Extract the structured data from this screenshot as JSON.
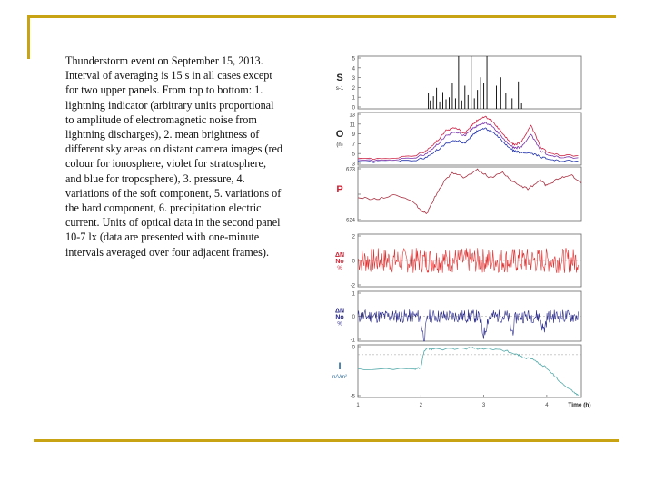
{
  "slide": {
    "caption": "Thunderstorm event on September 15, 2013. Interval of averaging is 15 s in all cases except for two upper panels. From top to bottom: 1. lightning indicator (arbitrary units proportional to amplitude of electromagnetic noise from lightning discharges), 2. mean brightness of different sky areas on distant camera images (red colour for ionosphere, violet for stratosphere, and blue for troposphere), 3. pressure, 4.  variations of the soft component, 5. variations of the hard component, 6.  precipitation electric current. Units of optical data in the second panel 10-7 lx (data are presented with one-minute intervals averaged over four adjacent frames).",
    "accent_color": "#c8a415"
  },
  "chart_data": {
    "type": "line",
    "x_label": "Time (h)",
    "x_ticks": [
      "1",
      "2",
      "3",
      "4"
    ],
    "xlim": [
      1,
      4.55
    ],
    "panels": [
      {
        "label": "S",
        "unit": "s-1",
        "y_ticks": [
          "5",
          "4",
          "3",
          "2",
          "1",
          "0"
        ],
        "ylim": [
          0,
          5
        ],
        "series": [
          {
            "color": "#000000",
            "style": "impulses",
            "x": [
              2.12,
              2.15,
              2.2,
              2.25,
              2.3,
              2.35,
              2.4,
              2.45,
              2.5,
              2.55,
              2.6,
              2.65,
              2.7,
              2.75,
              2.8,
              2.85,
              2.9,
              2.95,
              3.0,
              3.05,
              3.1,
              3.2,
              3.27,
              3.35,
              3.45,
              3.55,
              3.6
            ],
            "y": [
              1.5,
              0.8,
              1.2,
              2.0,
              0.7,
              1.6,
              0.9,
              1.1,
              2.5,
              1.0,
              5.0,
              0.8,
              2.2,
              1.3,
              5.0,
              1.0,
              1.8,
              3.0,
              2.5,
              5.0,
              1.2,
              2.2,
              3.0,
              1.5,
              1.0,
              2.6,
              0.6
            ]
          }
        ]
      },
      {
        "label": "O",
        "unit": "(n)",
        "y_ticks": [
          "13",
          "11",
          "9",
          "7",
          "5",
          "3"
        ],
        "ylim": [
          3,
          13
        ],
        "series": [
          {
            "color": "#cc2244",
            "x": [
              1,
              1.5,
              1.9,
              2.1,
              2.25,
              2.4,
              2.55,
              2.7,
              2.8,
              2.9,
              3.0,
              3.1,
              3.2,
              3.3,
              3.4,
              3.5,
              3.6,
              3.75,
              3.9,
              4.0,
              4.2,
              4.5
            ],
            "y": [
              4.2,
              4.3,
              4.8,
              5.8,
              7.5,
              9.5,
              10.2,
              9.0,
              10.5,
              11.5,
              12.2,
              11.8,
              10.5,
              9.0,
              7.5,
              6.8,
              7.5,
              10.5,
              6.5,
              5.5,
              5.0,
              4.8
            ]
          },
          {
            "color": "#7733aa",
            "x": [
              1,
              1.5,
              1.9,
              2.1,
              2.25,
              2.4,
              2.55,
              2.7,
              2.8,
              2.9,
              3.0,
              3.1,
              3.2,
              3.3,
              3.4,
              3.5,
              3.6,
              3.75,
              3.9,
              4.0,
              4.2,
              4.5
            ],
            "y": [
              3.9,
              4.0,
              4.4,
              5.2,
              6.8,
              8.5,
              9.4,
              8.6,
              9.8,
              10.5,
              11.0,
              10.8,
              9.6,
              8.2,
              6.8,
              6.2,
              6.5,
              8.8,
              5.8,
              5.0,
              4.6,
              4.4
            ]
          },
          {
            "color": "#2233aa",
            "x": [
              1,
              1.5,
              1.9,
              2.1,
              2.25,
              2.4,
              2.55,
              2.7,
              2.8,
              2.9,
              3.0,
              3.1,
              3.2,
              3.3,
              3.4,
              3.5,
              3.6,
              3.75,
              3.9,
              4.0,
              4.2,
              4.5
            ],
            "y": [
              3.6,
              3.7,
              3.9,
              4.5,
              5.8,
              7.0,
              7.8,
              7.2,
              8.5,
              9.5,
              10.0,
              9.6,
              8.8,
              7.5,
              6.2,
              5.6,
              5.4,
              5.2,
              4.6,
              4.2,
              3.9,
              3.8
            ]
          }
        ]
      },
      {
        "label": "P",
        "unit": "",
        "y_ticks": [
          "623",
          "",
          "624"
        ],
        "ylim": [
          624,
          623
        ],
        "series": [
          {
            "color": "#aa3344",
            "x": [
              1,
              1.3,
              1.6,
              1.9,
              2.0,
              2.1,
              2.2,
              2.35,
              2.5,
              2.7,
              2.9,
              3.1,
              3.3,
              3.5,
              3.7,
              3.9,
              4.0,
              4.2,
              4.4,
              4.55
            ],
            "y": [
              623.55,
              623.6,
              623.5,
              623.65,
              623.8,
              623.85,
              623.6,
              623.3,
              623.1,
              623.2,
              623.05,
              623.2,
              623.1,
              623.3,
              623.4,
              623.25,
              623.35,
              623.2,
              623.15,
              623.3
            ]
          }
        ]
      },
      {
        "label": "ΔN/No",
        "unit": "%",
        "y_ticks": [
          "2",
          "0",
          "-2"
        ],
        "ylim": [
          -2.5,
          2.5
        ],
        "series": [
          {
            "color": "#e03030",
            "style": "noise",
            "baseline": 0,
            "amplitude": 1.2,
            "count": 360,
            "seed": 7
          }
        ]
      },
      {
        "label": "ΔN/No",
        "unit": "%",
        "y_ticks": [
          "1",
          "0",
          "-1"
        ],
        "ylim": [
          -1.3,
          1.3
        ],
        "series": [
          {
            "color": "#2a2a8a",
            "style": "noise",
            "baseline": 0,
            "amplitude": 0.35,
            "count": 360,
            "seed": 11,
            "dips": [
              {
                "x": 2.05,
                "depth": -1.1,
                "width": 0.04
              },
              {
                "x": 3.0,
                "depth": -0.9,
                "width": 0.05
              },
              {
                "x": 3.45,
                "depth": -0.8,
                "width": 0.04
              },
              {
                "x": 3.95,
                "depth": -0.7,
                "width": 0.04
              }
            ]
          }
        ]
      },
      {
        "label": "I",
        "unit": "nA/m²",
        "y_ticks": [
          "0",
          "-5"
        ],
        "ylim": [
          -6.5,
          1.5
        ],
        "series": [
          {
            "color": "#55aaaa",
            "x": [
              1,
              1.9,
              2.0,
              2.05,
              2.1,
              2.2,
              2.5,
              2.8,
              3.0,
              3.3,
              3.5,
              3.6,
              3.8,
              3.9,
              4.0,
              4.2,
              4.4,
              4.5
            ],
            "y": [
              -2.2,
              -2.2,
              -2.0,
              0.5,
              1.0,
              0.8,
              0.9,
              1.0,
              0.9,
              0.7,
              0.2,
              -0.3,
              -0.8,
              -1.5,
              -2.0,
              -4.0,
              -5.5,
              -6.2
            ]
          }
        ]
      }
    ]
  }
}
